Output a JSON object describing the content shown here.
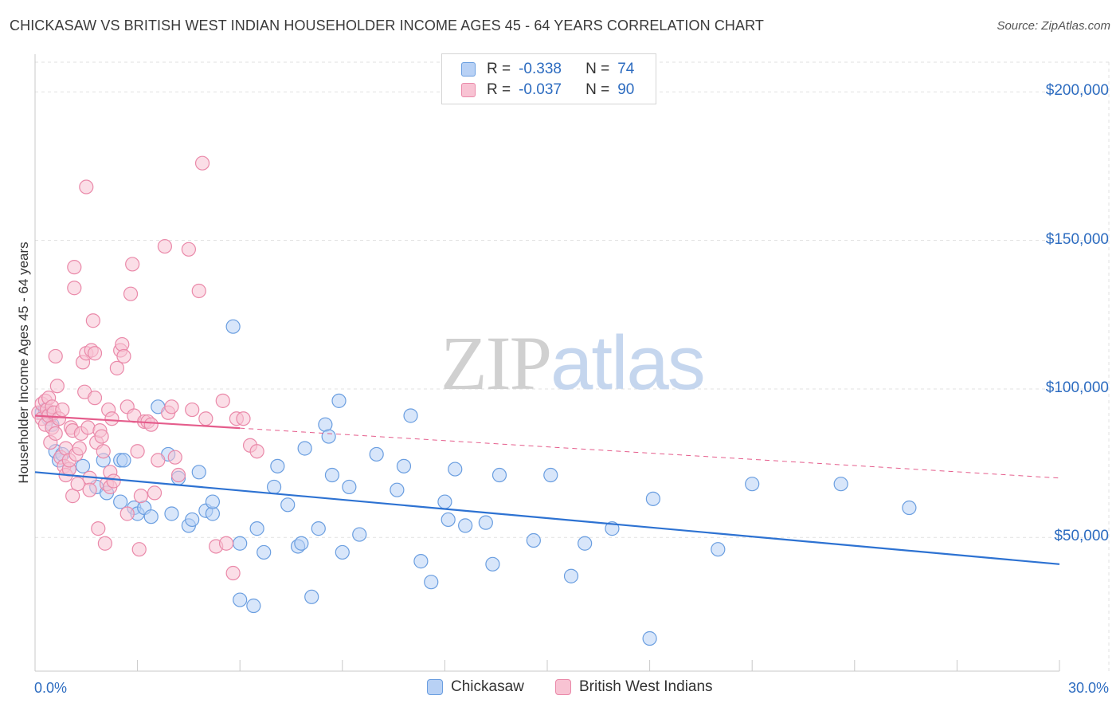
{
  "title": "CHICKASAW VS BRITISH WEST INDIAN HOUSEHOLDER INCOME AGES 45 - 64 YEARS CORRELATION CHART",
  "source": "Source: ZipAtlas.com",
  "watermark": {
    "zip": "ZIP",
    "atlas": "atlas"
  },
  "legend": {
    "chickasaw": {
      "r_label": "R =",
      "r_value": "-0.338",
      "n_label": "N =",
      "n_value": "74"
    },
    "bwi": {
      "r_label": "R =",
      "r_value": "-0.037",
      "n_label": "N =",
      "n_value": "90"
    }
  },
  "colors": {
    "chickasaw_fill": "#b8d1f5",
    "chickasaw_stroke": "#6a9ee0",
    "chickasaw_line": "#2d72d2",
    "bwi_fill": "#f8c3d3",
    "bwi_stroke": "#ea89a9",
    "bwi_line": "#e55d8c",
    "axis_text": "#2d6cc0",
    "grid": "#e1e1e1"
  },
  "chart_data": {
    "type": "scatter",
    "title": "CHICKASAW VS BRITISH WEST INDIAN HOUSEHOLDER INCOME AGES 45 - 64 YEARS CORRELATION CHART",
    "xlabel": "",
    "ylabel": "Householder Income Ages 45 - 64 years",
    "xlim": [
      0,
      30
    ],
    "ylim": [
      5000,
      210000
    ],
    "x_tick_labels": [
      "0.0%",
      "30.0%"
    ],
    "y_ticks": [
      50000,
      100000,
      150000,
      200000
    ],
    "y_tick_labels": [
      "$50,000",
      "$100,000",
      "$150,000",
      "$200,000"
    ],
    "legend_position": "top-center",
    "series": [
      {
        "name": "Chickasaw",
        "r": -0.338,
        "n": 74,
        "trend": {
          "x": [
            0,
            30
          ],
          "y": [
            72000,
            41000
          ],
          "dashed_from": null
        },
        "points": [
          [
            0.2,
            92000
          ],
          [
            0.3,
            93000
          ],
          [
            0.4,
            90000
          ],
          [
            0.5,
            88000
          ],
          [
            0.6,
            79000
          ],
          [
            0.7,
            76000
          ],
          [
            0.8,
            78000
          ],
          [
            1.0,
            73000
          ],
          [
            1.4,
            74000
          ],
          [
            1.8,
            67000
          ],
          [
            2.0,
            76000
          ],
          [
            2.1,
            65000
          ],
          [
            2.5,
            76000
          ],
          [
            2.6,
            76000
          ],
          [
            2.5,
            62000
          ],
          [
            2.9,
            60000
          ],
          [
            3.0,
            58000
          ],
          [
            3.2,
            60000
          ],
          [
            3.4,
            57000
          ],
          [
            3.6,
            94000
          ],
          [
            3.9,
            78000
          ],
          [
            4.0,
            58000
          ],
          [
            4.2,
            70000
          ],
          [
            4.5,
            54000
          ],
          [
            4.6,
            56000
          ],
          [
            4.8,
            72000
          ],
          [
            5.0,
            59000
          ],
          [
            5.2,
            58000
          ],
          [
            5.2,
            62000
          ],
          [
            5.8,
            121000
          ],
          [
            6.0,
            48000
          ],
          [
            6.0,
            29000
          ],
          [
            6.4,
            27000
          ],
          [
            6.5,
            53000
          ],
          [
            6.7,
            45000
          ],
          [
            7.0,
            67000
          ],
          [
            7.1,
            74000
          ],
          [
            7.4,
            61000
          ],
          [
            7.7,
            47000
          ],
          [
            7.8,
            48000
          ],
          [
            7.9,
            80000
          ],
          [
            8.1,
            30000
          ],
          [
            8.3,
            53000
          ],
          [
            8.5,
            88000
          ],
          [
            8.6,
            84000
          ],
          [
            8.7,
            71000
          ],
          [
            8.9,
            96000
          ],
          [
            9.0,
            45000
          ],
          [
            9.2,
            67000
          ],
          [
            9.5,
            51000
          ],
          [
            10.0,
            78000
          ],
          [
            10.6,
            66000
          ],
          [
            10.8,
            74000
          ],
          [
            11.0,
            91000
          ],
          [
            11.3,
            42000
          ],
          [
            11.6,
            35000
          ],
          [
            12.0,
            62000
          ],
          [
            12.1,
            56000
          ],
          [
            12.3,
            73000
          ],
          [
            12.6,
            54000
          ],
          [
            13.2,
            55000
          ],
          [
            13.4,
            41000
          ],
          [
            13.6,
            71000
          ],
          [
            14.6,
            49000
          ],
          [
            15.1,
            71000
          ],
          [
            15.7,
            37000
          ],
          [
            16.1,
            48000
          ],
          [
            16.9,
            53000
          ],
          [
            18.0,
            16000
          ],
          [
            18.1,
            63000
          ],
          [
            20.0,
            46000
          ],
          [
            21.0,
            68000
          ],
          [
            23.6,
            68000
          ],
          [
            25.6,
            60000
          ]
        ]
      },
      {
        "name": "British West Indians",
        "r": -0.037,
        "n": 90,
        "trend": {
          "x": [
            0,
            30
          ],
          "y": [
            91000,
            70000
          ],
          "dashed_from": 6.0
        },
        "points": [
          [
            0.1,
            92000
          ],
          [
            0.2,
            95000
          ],
          [
            0.2,
            90000
          ],
          [
            0.3,
            96000
          ],
          [
            0.3,
            88000
          ],
          [
            0.35,
            93000
          ],
          [
            0.4,
            97000
          ],
          [
            0.4,
            91000
          ],
          [
            0.45,
            82000
          ],
          [
            0.5,
            94000
          ],
          [
            0.5,
            87000
          ],
          [
            0.55,
            92000
          ],
          [
            0.6,
            111000
          ],
          [
            0.6,
            85000
          ],
          [
            0.65,
            101000
          ],
          [
            0.7,
            90000
          ],
          [
            0.75,
            77000
          ],
          [
            0.8,
            93000
          ],
          [
            0.85,
            74000
          ],
          [
            0.9,
            80000
          ],
          [
            0.9,
            71000
          ],
          [
            1.0,
            73000
          ],
          [
            1.0,
            76000
          ],
          [
            1.05,
            87000
          ],
          [
            1.1,
            64000
          ],
          [
            1.1,
            86000
          ],
          [
            1.15,
            141000
          ],
          [
            1.15,
            134000
          ],
          [
            1.2,
            78000
          ],
          [
            1.25,
            68000
          ],
          [
            1.3,
            80000
          ],
          [
            1.35,
            85000
          ],
          [
            1.4,
            109000
          ],
          [
            1.45,
            99000
          ],
          [
            1.5,
            112000
          ],
          [
            1.5,
            168000
          ],
          [
            1.55,
            87000
          ],
          [
            1.6,
            70000
          ],
          [
            1.6,
            66000
          ],
          [
            1.65,
            113000
          ],
          [
            1.7,
            123000
          ],
          [
            1.75,
            112000
          ],
          [
            1.75,
            97000
          ],
          [
            1.8,
            82000
          ],
          [
            1.85,
            53000
          ],
          [
            1.9,
            86000
          ],
          [
            1.95,
            84000
          ],
          [
            2.0,
            79000
          ],
          [
            2.05,
            48000
          ],
          [
            2.1,
            68000
          ],
          [
            2.15,
            93000
          ],
          [
            2.2,
            67000
          ],
          [
            2.2,
            72000
          ],
          [
            2.25,
            90000
          ],
          [
            2.3,
            69000
          ],
          [
            2.4,
            107000
          ],
          [
            2.5,
            113000
          ],
          [
            2.55,
            115000
          ],
          [
            2.6,
            111000
          ],
          [
            2.7,
            94000
          ],
          [
            2.7,
            58000
          ],
          [
            2.8,
            132000
          ],
          [
            2.85,
            142000
          ],
          [
            2.9,
            91000
          ],
          [
            3.0,
            79000
          ],
          [
            3.05,
            46000
          ],
          [
            3.1,
            64000
          ],
          [
            3.2,
            89000
          ],
          [
            3.3,
            89000
          ],
          [
            3.4,
            88000
          ],
          [
            3.5,
            65000
          ],
          [
            3.6,
            76000
          ],
          [
            3.8,
            148000
          ],
          [
            3.9,
            92000
          ],
          [
            4.0,
            94000
          ],
          [
            4.1,
            77000
          ],
          [
            4.2,
            71000
          ],
          [
            4.5,
            147000
          ],
          [
            4.6,
            93000
          ],
          [
            4.8,
            133000
          ],
          [
            4.9,
            176000
          ],
          [
            5.0,
            90000
          ],
          [
            5.3,
            47000
          ],
          [
            5.5,
            96000
          ],
          [
            5.6,
            48000
          ],
          [
            5.8,
            38000
          ],
          [
            5.9,
            90000
          ],
          [
            6.1,
            90000
          ],
          [
            6.3,
            81000
          ],
          [
            6.5,
            79000
          ]
        ]
      }
    ]
  },
  "bottom_legend": {
    "chickasaw": "Chickasaw",
    "bwi": "British West Indians"
  }
}
